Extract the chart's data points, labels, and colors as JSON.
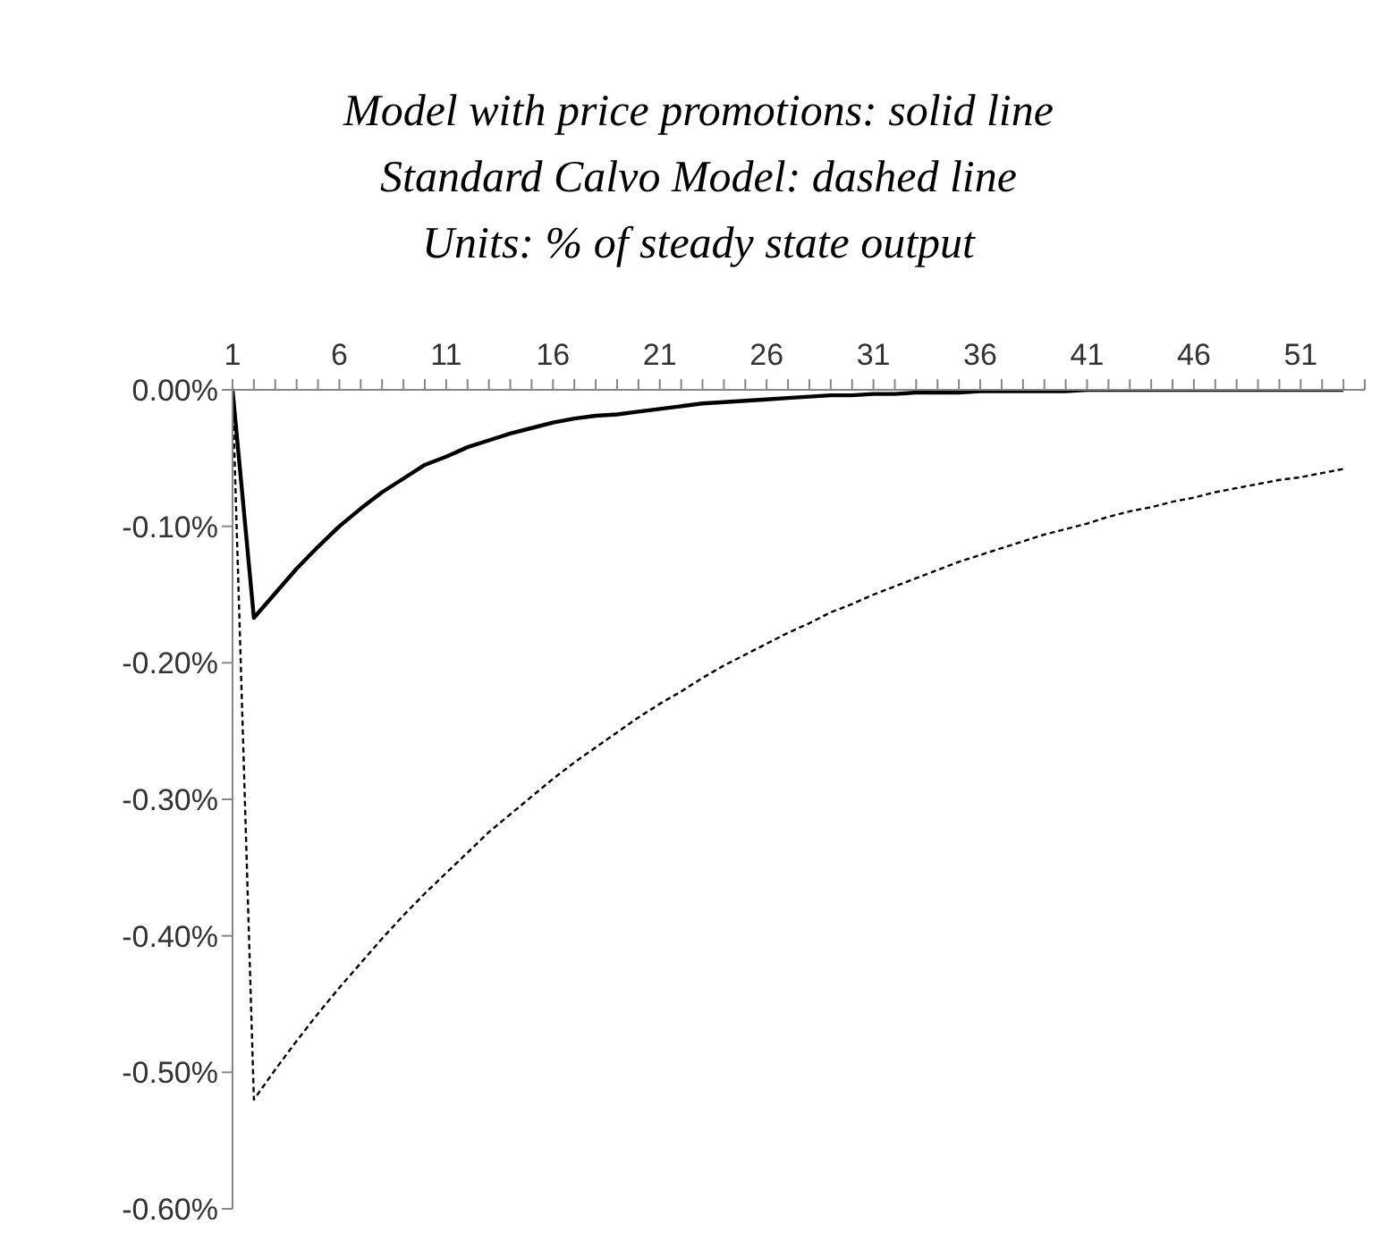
{
  "chart_data": {
    "type": "line",
    "title": "Model with price promotions: solid line\nStandard Calvo Model: dashed line\nUnits: % of steady state output",
    "x": [
      1,
      2,
      3,
      4,
      5,
      6,
      7,
      8,
      9,
      10,
      11,
      12,
      13,
      14,
      15,
      16,
      17,
      18,
      19,
      20,
      21,
      22,
      23,
      24,
      25,
      26,
      27,
      28,
      29,
      30,
      31,
      32,
      33,
      34,
      35,
      36,
      37,
      38,
      39,
      40,
      41,
      42,
      43,
      44,
      45,
      46,
      47,
      48,
      49,
      50,
      51,
      52,
      53
    ],
    "series": [
      {
        "color": "#000000",
        "line_style": "solid",
        "values": [
          0,
          -0.167,
          -0.149,
          -0.131,
          -0.115,
          -0.1,
          -0.087,
          -0.075,
          -0.065,
          -0.055,
          -0.049,
          -0.042,
          -0.037,
          -0.032,
          -0.028,
          -0.024,
          -0.021,
          -0.019,
          -0.018,
          -0.016,
          -0.014,
          -0.012,
          -0.01,
          -0.009,
          -0.008,
          -0.007,
          -0.006,
          -0.005,
          -0.004,
          -0.004,
          -0.003,
          -0.003,
          -0.002,
          -0.002,
          -0.002,
          -0.001,
          -0.001,
          -0.001,
          -0.001,
          -0.001,
          0,
          0,
          0,
          0,
          0,
          0,
          0,
          0,
          0,
          0,
          0,
          0,
          0
        ]
      },
      {
        "color": "#000000",
        "line_style": "dashed",
        "values": [
          0,
          -0.52,
          -0.498,
          -0.477,
          -0.457,
          -0.438,
          -0.42,
          -0.402,
          -0.385,
          -0.369,
          -0.354,
          -0.339,
          -0.324,
          -0.311,
          -0.298,
          -0.285,
          -0.273,
          -0.262,
          -0.251,
          -0.24,
          -0.23,
          -0.221,
          -0.211,
          -0.202,
          -0.194,
          -0.186,
          -0.178,
          -0.171,
          -0.163,
          -0.157,
          -0.15,
          -0.144,
          -0.138,
          -0.132,
          -0.126,
          -0.121,
          -0.116,
          -0.111,
          -0.106,
          -0.102,
          -0.098,
          -0.093,
          -0.089,
          -0.086,
          -0.082,
          -0.079,
          -0.075,
          -0.072,
          -0.069,
          -0.066,
          -0.064,
          -0.061,
          -0.058
        ]
      }
    ],
    "xlim": [
      1,
      54
    ],
    "xticks": [
      1,
      {
        "value": 2,
        "label": null
      },
      {
        "value": 3,
        "label": null
      },
      {
        "value": 4,
        "label": null
      },
      {
        "value": 5,
        "label": null
      },
      6,
      {
        "value": 7,
        "label": null
      },
      {
        "value": 8,
        "label": null
      },
      {
        "value": 9,
        "label": null
      },
      {
        "value": 10,
        "label": null
      },
      11,
      {
        "value": 12,
        "label": null
      },
      {
        "value": 13,
        "label": null
      },
      {
        "value": 14,
        "label": null
      },
      {
        "value": 15,
        "label": null
      },
      16,
      {
        "value": 17,
        "label": null
      },
      {
        "value": 18,
        "label": null
      },
      {
        "value": 19,
        "label": null
      },
      {
        "value": 20,
        "label": null
      },
      21,
      {
        "value": 22,
        "label": null
      },
      {
        "value": 23,
        "label": null
      },
      {
        "value": 24,
        "label": null
      },
      {
        "value": 25,
        "label": null
      },
      26,
      {
        "value": 27,
        "label": null
      },
      {
        "value": 28,
        "label": null
      },
      {
        "value": 29,
        "label": null
      },
      {
        "value": 30,
        "label": null
      },
      31,
      {
        "value": 32,
        "label": null
      },
      {
        "value": 33,
        "label": null
      },
      {
        "value": 34,
        "label": null
      },
      {
        "value": 35,
        "label": null
      },
      36,
      {
        "value": 37,
        "label": null
      },
      {
        "value": 38,
        "label": null
      },
      {
        "value": 39,
        "label": null
      },
      {
        "value": 40,
        "label": null
      },
      41,
      {
        "value": 42,
        "label": null
      },
      {
        "value": 43,
        "label": null
      },
      {
        "value": 44,
        "label": null
      },
      {
        "value": 45,
        "label": null
      },
      46,
      {
        "value": 47,
        "label": null
      },
      {
        "value": 48,
        "label": null
      },
      {
        "value": 49,
        "label": null
      },
      {
        "value": 50,
        "label": null
      },
      51,
      {
        "value": 52,
        "label": null
      },
      {
        "value": 53,
        "label": null
      },
      {
        "value": 54,
        "label": null
      }
    ],
    "ylim": [
      -0.6,
      0
    ],
    "yticks": [
      {
        "value": 0,
        "label": "0.00%"
      },
      {
        "value": -0.1,
        "label": "-0.10%"
      },
      {
        "value": -0.2,
        "label": "-0.20%"
      },
      {
        "value": -0.3,
        "label": "-0.30%"
      },
      {
        "value": -0.4,
        "label": "-0.40%"
      },
      {
        "value": -0.5,
        "label": "-0.50%"
      },
      {
        "value": -0.6,
        "label": "-0.60%"
      }
    ],
    "grid": false,
    "legend": false,
    "marker": "none"
  }
}
